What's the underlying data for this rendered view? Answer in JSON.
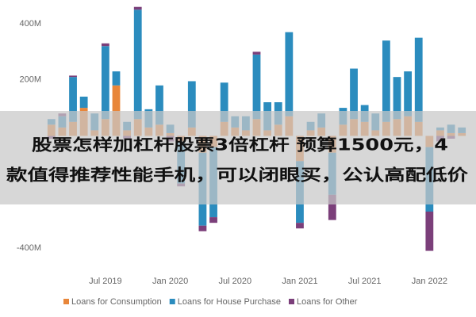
{
  "chart_data": {
    "type": "bar",
    "stacked": true,
    "categories": [
      null,
      null,
      null,
      null,
      null,
      "Jul 2019",
      null,
      null,
      null,
      null,
      null,
      "Jan 2020",
      null,
      null,
      null,
      null,
      null,
      "Jul 2020",
      null,
      null,
      null,
      null,
      null,
      "Jan 2021",
      null,
      null,
      null,
      null,
      null,
      "Jul 2021",
      null,
      null,
      null,
      null,
      null,
      "Jan 2022",
      null,
      null,
      null
    ],
    "series": [
      {
        "name": "Loans for Consumption",
        "color": "#e8863a",
        "values": [
          40,
          30,
          50,
          100,
          20,
          60,
          180,
          20,
          60,
          30,
          40,
          10,
          -20,
          30,
          -60,
          -40,
          50,
          30,
          20,
          60,
          20,
          40,
          70,
          -90,
          20,
          30,
          -60,
          40,
          60,
          50,
          20,
          50,
          60,
          70,
          50,
          -40,
          20,
          10,
          10
        ]
      },
      {
        "name": "Loans for House Purchase",
        "color": "#2b8cbe",
        "values": [
          20,
          40,
          160,
          40,
          60,
          260,
          50,
          30,
          390,
          65,
          140,
          30,
          -150,
          165,
          -260,
          -250,
          140,
          40,
          50,
          230,
          100,
          80,
          300,
          -220,
          30,
          50,
          -150,
          60,
          180,
          60,
          60,
          290,
          150,
          160,
          300,
          -230,
          10,
          30,
          20
        ]
      },
      {
        "name": "Loans for Other",
        "color": "#7b3f7a",
        "values": [
          -10,
          10,
          5,
          0,
          0,
          10,
          0,
          -10,
          10,
          0,
          0,
          -20,
          -10,
          0,
          -20,
          -20,
          0,
          0,
          0,
          10,
          0,
          0,
          0,
          -20,
          0,
          0,
          -90,
          0,
          0,
          0,
          0,
          0,
          0,
          0,
          0,
          -140,
          -20,
          -10,
          0
        ]
      }
    ],
    "ylim": [
      -465,
      462
    ],
    "yticks": [
      {
        "value": 400,
        "label": "400M"
      },
      {
        "value": 200,
        "label": "200M"
      },
      {
        "value": -400,
        "label": "-400M"
      }
    ],
    "legend": "bottom-left"
  },
  "overlay_text": [
    "股票怎样加杠杆股票3倍杠杆 预算1500元，4",
    "款值得推荐性能手机，可以闭眼买，公认高配低价"
  ]
}
